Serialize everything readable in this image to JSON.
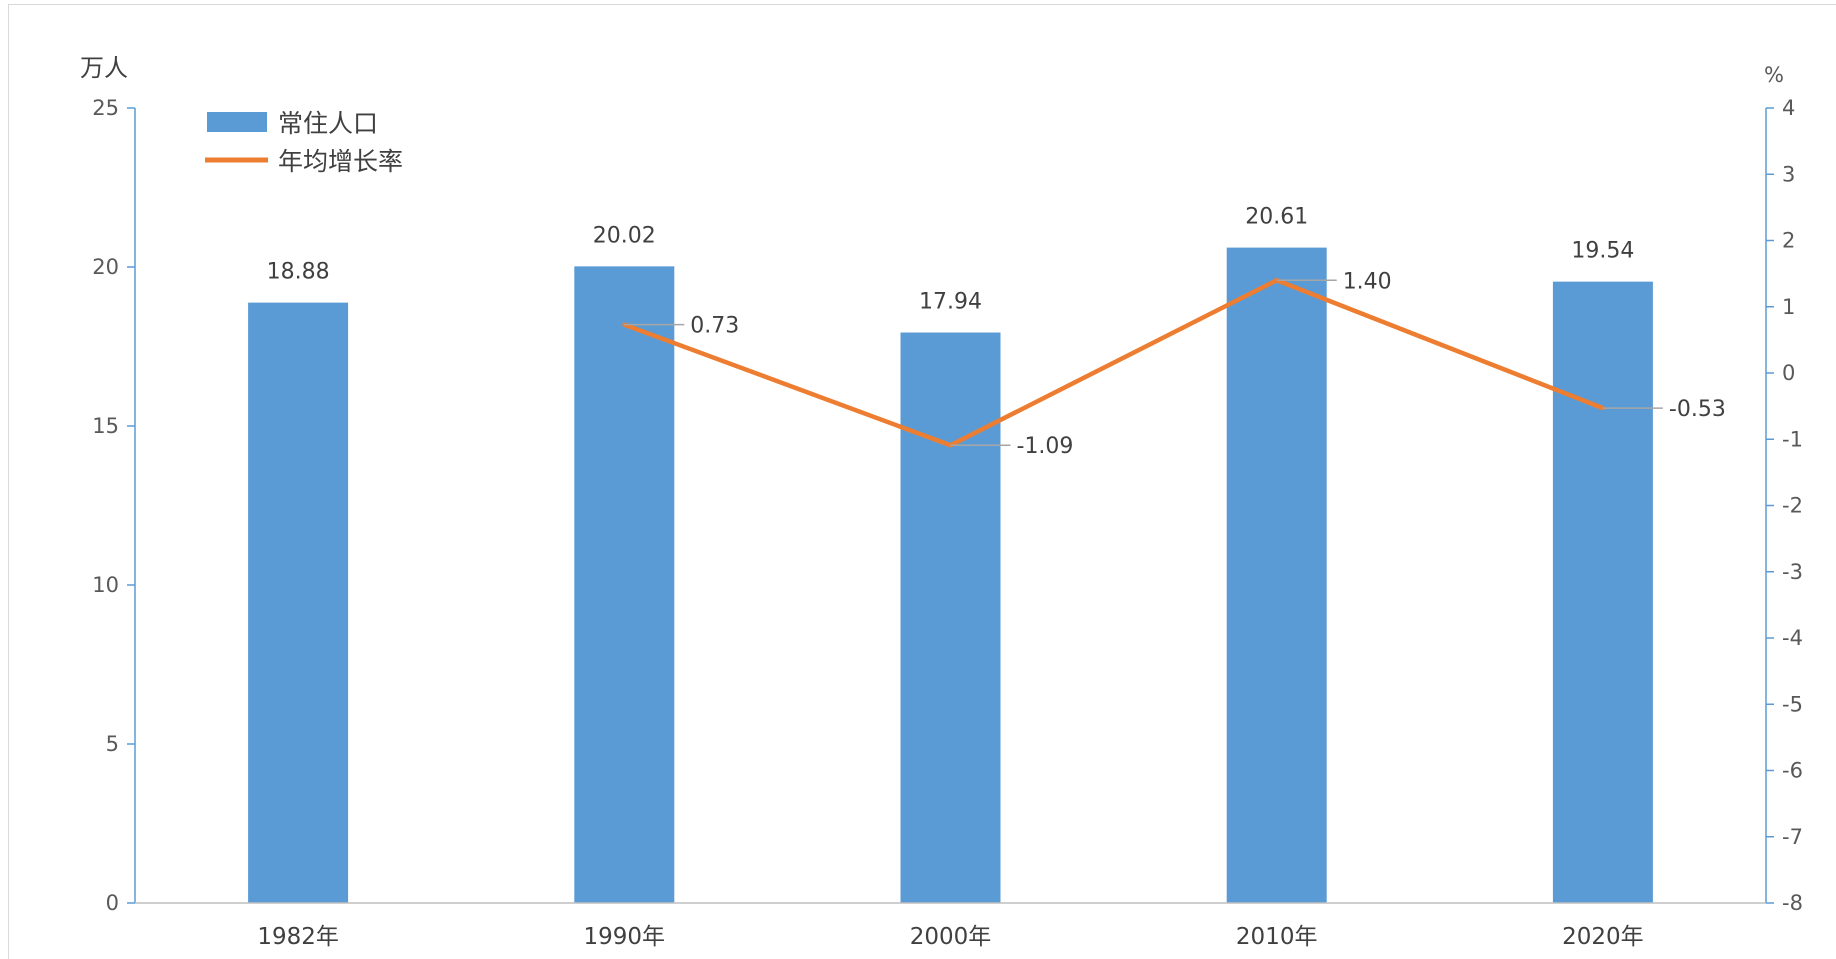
{
  "chart_data": {
    "type": "bar",
    "categories": [
      "1982年",
      "1990年",
      "2000年",
      "2010年",
      "2020年"
    ],
    "series": [
      {
        "name": "常住人口",
        "type": "bar",
        "axis": "left",
        "values": [
          18.88,
          20.02,
          17.94,
          20.61,
          19.54
        ],
        "labels": [
          "18.88",
          "20.02",
          "17.94",
          "20.61",
          "19.54"
        ],
        "color": "#5b9bd5"
      },
      {
        "name": "年均增长率",
        "type": "line",
        "axis": "right",
        "values": [
          null,
          0.73,
          -1.09,
          1.4,
          -0.53
        ],
        "labels": [
          "",
          "0.73",
          "-1.09",
          "1.40",
          "-0.53"
        ],
        "color": "#ed7d31"
      }
    ],
    "y_left": {
      "unit": "万人",
      "ylim": [
        0,
        25
      ],
      "ticks": [
        "0",
        "5",
        "10",
        "15",
        "20",
        "25"
      ]
    },
    "y_right": {
      "unit": "%",
      "ylim": [
        -8,
        4
      ],
      "ticks": [
        "-8",
        "-7",
        "-6",
        "-5",
        "-4",
        "-3",
        "-2",
        "-1",
        "0",
        "1",
        "2",
        "3",
        "4"
      ]
    },
    "legend_position": "top-left",
    "grid": false,
    "axis_color": "#5b9bd5",
    "leader_color": "#a6a6a6"
  }
}
